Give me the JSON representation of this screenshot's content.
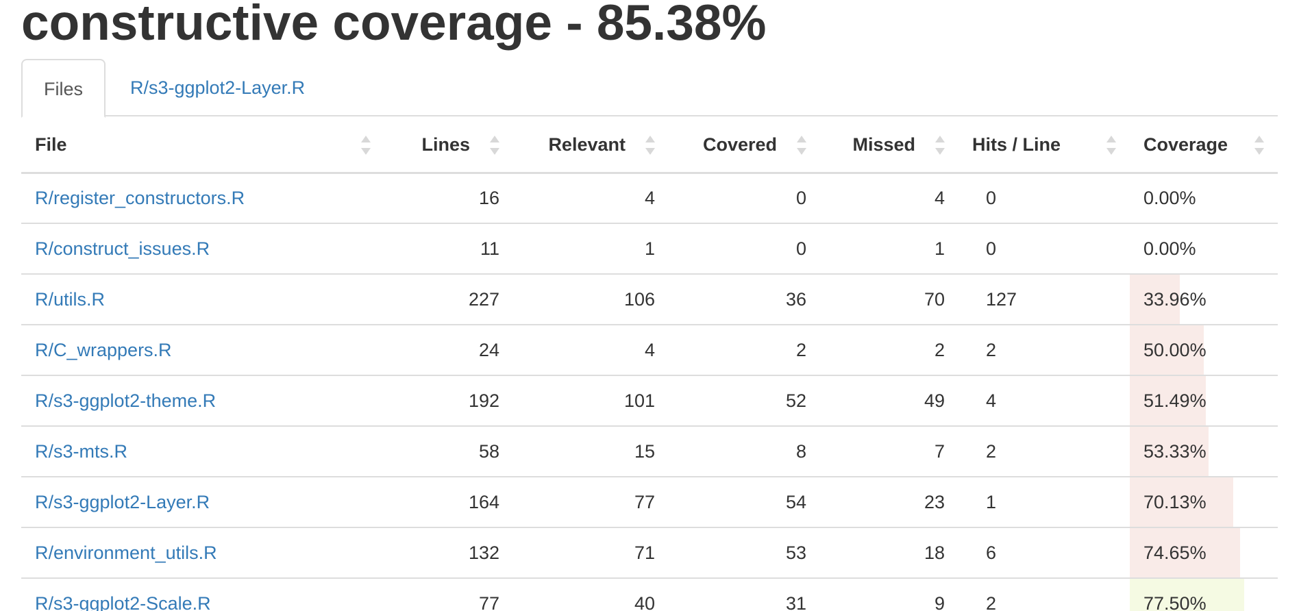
{
  "title": "constructive coverage - 85.38%",
  "tabs": [
    {
      "label": "Files",
      "active": true
    },
    {
      "label": "R/s3-ggplot2-Layer.R",
      "active": false
    }
  ],
  "columns": {
    "file": "File",
    "lines": "Lines",
    "relevant": "Relevant",
    "covered": "Covered",
    "missed": "Missed",
    "hits": "Hits / Line",
    "coverage": "Coverage"
  },
  "colors": {
    "link": "#337ab7",
    "bar_low": "#f9ebe8",
    "bar_mid": "#f5fae3"
  },
  "rows": [
    {
      "file": "R/register_constructors.R",
      "lines": "16",
      "relevant": "4",
      "covered": "0",
      "missed": "4",
      "hits": "0",
      "coverage": "0.00%",
      "pct": 0
    },
    {
      "file": "R/construct_issues.R",
      "lines": "11",
      "relevant": "1",
      "covered": "0",
      "missed": "1",
      "hits": "0",
      "coverage": "0.00%",
      "pct": 0
    },
    {
      "file": "R/utils.R",
      "lines": "227",
      "relevant": "106",
      "covered": "36",
      "missed": "70",
      "hits": "127",
      "coverage": "33.96%",
      "pct": 33.96
    },
    {
      "file": "R/C_wrappers.R",
      "lines": "24",
      "relevant": "4",
      "covered": "2",
      "missed": "2",
      "hits": "2",
      "coverage": "50.00%",
      "pct": 50.0
    },
    {
      "file": "R/s3-ggplot2-theme.R",
      "lines": "192",
      "relevant": "101",
      "covered": "52",
      "missed": "49",
      "hits": "4",
      "coverage": "51.49%",
      "pct": 51.49
    },
    {
      "file": "R/s3-mts.R",
      "lines": "58",
      "relevant": "15",
      "covered": "8",
      "missed": "7",
      "hits": "2",
      "coverage": "53.33%",
      "pct": 53.33
    },
    {
      "file": "R/s3-ggplot2-Layer.R",
      "lines": "164",
      "relevant": "77",
      "covered": "54",
      "missed": "23",
      "hits": "1",
      "coverage": "70.13%",
      "pct": 70.13
    },
    {
      "file": "R/environment_utils.R",
      "lines": "132",
      "relevant": "71",
      "covered": "53",
      "missed": "18",
      "hits": "6",
      "coverage": "74.65%",
      "pct": 74.65
    },
    {
      "file": "R/s3-ggplot2-Scale.R",
      "lines": "77",
      "relevant": "40",
      "covered": "31",
      "missed": "9",
      "hits": "2",
      "coverage": "77.50%",
      "pct": 77.5
    }
  ]
}
